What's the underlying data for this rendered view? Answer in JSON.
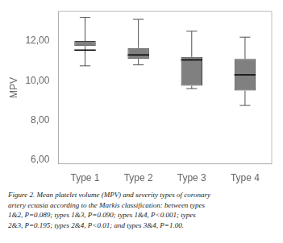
{
  "chart_data": {
    "type": "box",
    "categories": [
      "Type 1",
      "Type 2",
      "Type 3",
      "Type 4"
    ],
    "boxes": [
      {
        "whislo": 10.75,
        "q1": 11.75,
        "med": 11.55,
        "q3": 12.0,
        "whishi": 13.2
      },
      {
        "whislo": 10.8,
        "q1": 11.1,
        "med": 11.3,
        "q3": 11.65,
        "whishi": 13.1
      },
      {
        "whislo": 9.6,
        "q1": 9.75,
        "med": 11.05,
        "q3": 11.2,
        "whishi": 12.5
      },
      {
        "whislo": 8.75,
        "q1": 9.5,
        "med": 10.3,
        "q3": 11.1,
        "whishi": 12.2
      }
    ],
    "ylabel": "MPV",
    "ylim": [
      5.8,
      13.5
    ],
    "yticks": [
      {
        "value": 6.0,
        "label": "6,00"
      },
      {
        "value": 8.0,
        "label": "8,00"
      },
      {
        "value": 10.0,
        "label": "10,00"
      },
      {
        "value": 12.0,
        "label": "12,00"
      }
    ],
    "color": "#808080",
    "grid": false,
    "caption": [
      "Figure 2. Mean platelet volume (MPV) and severity types of coronary",
      "artery ectasia according to the Markis classification: between types",
      "1&2, P=0.089; types 1&3, P=0.090; types 1&4, P<0.001; types",
      "2&3, P=0.195; types 2&4, P<0.01; and types 3&4, P=1.00."
    ]
  }
}
